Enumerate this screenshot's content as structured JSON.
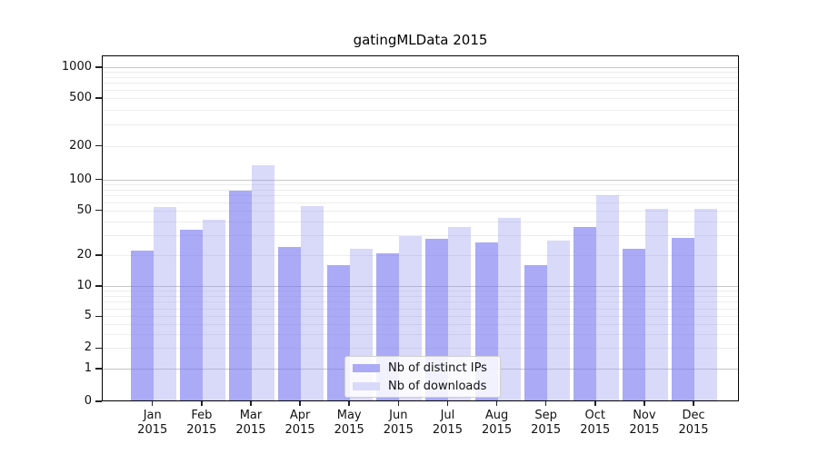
{
  "chart_data": {
    "type": "bar",
    "title": "gatingMLData 2015",
    "categories": [
      "Jan 2015",
      "Feb 2015",
      "Mar 2015",
      "Apr 2015",
      "May 2015",
      "Jun 2015",
      "Jul 2015",
      "Aug 2015",
      "Sep 2015",
      "Oct 2015",
      "Nov 2015",
      "Dec 2015"
    ],
    "series": [
      {
        "name": "Nb of distinct IPs",
        "color": "#aaaaf6",
        "values": [
          22,
          34,
          78,
          24,
          16,
          21,
          28,
          26,
          16,
          36,
          23,
          29
        ]
      },
      {
        "name": "Nb of downloads",
        "color": "#d9d9f9",
        "values": [
          55,
          42,
          135,
          56,
          23,
          30,
          36,
          43,
          27,
          71,
          52,
          52
        ]
      },
      {
        "name": "_colors_rgba",
        "bar_fill_dark": "rgba(118,118,240,0.62)",
        "bar_fill_light": "rgba(146,146,238,0.35)"
      }
    ],
    "xlabel": "",
    "ylabel": "",
    "yscale": "symlog (log above 1, linear 0-1)",
    "y_tick_values": [
      0,
      1,
      2,
      5,
      10,
      20,
      50,
      100,
      200,
      500,
      1000
    ],
    "ylim": [
      0,
      1300
    ],
    "grid": "horizontal major (1,10,100,1000) + minor log gridlines",
    "legend_position": "lower center inside plot",
    "colors": {
      "major_grid": "#c6c6c6",
      "minor_grid": "#ededed",
      "spine": "#000000"
    }
  }
}
